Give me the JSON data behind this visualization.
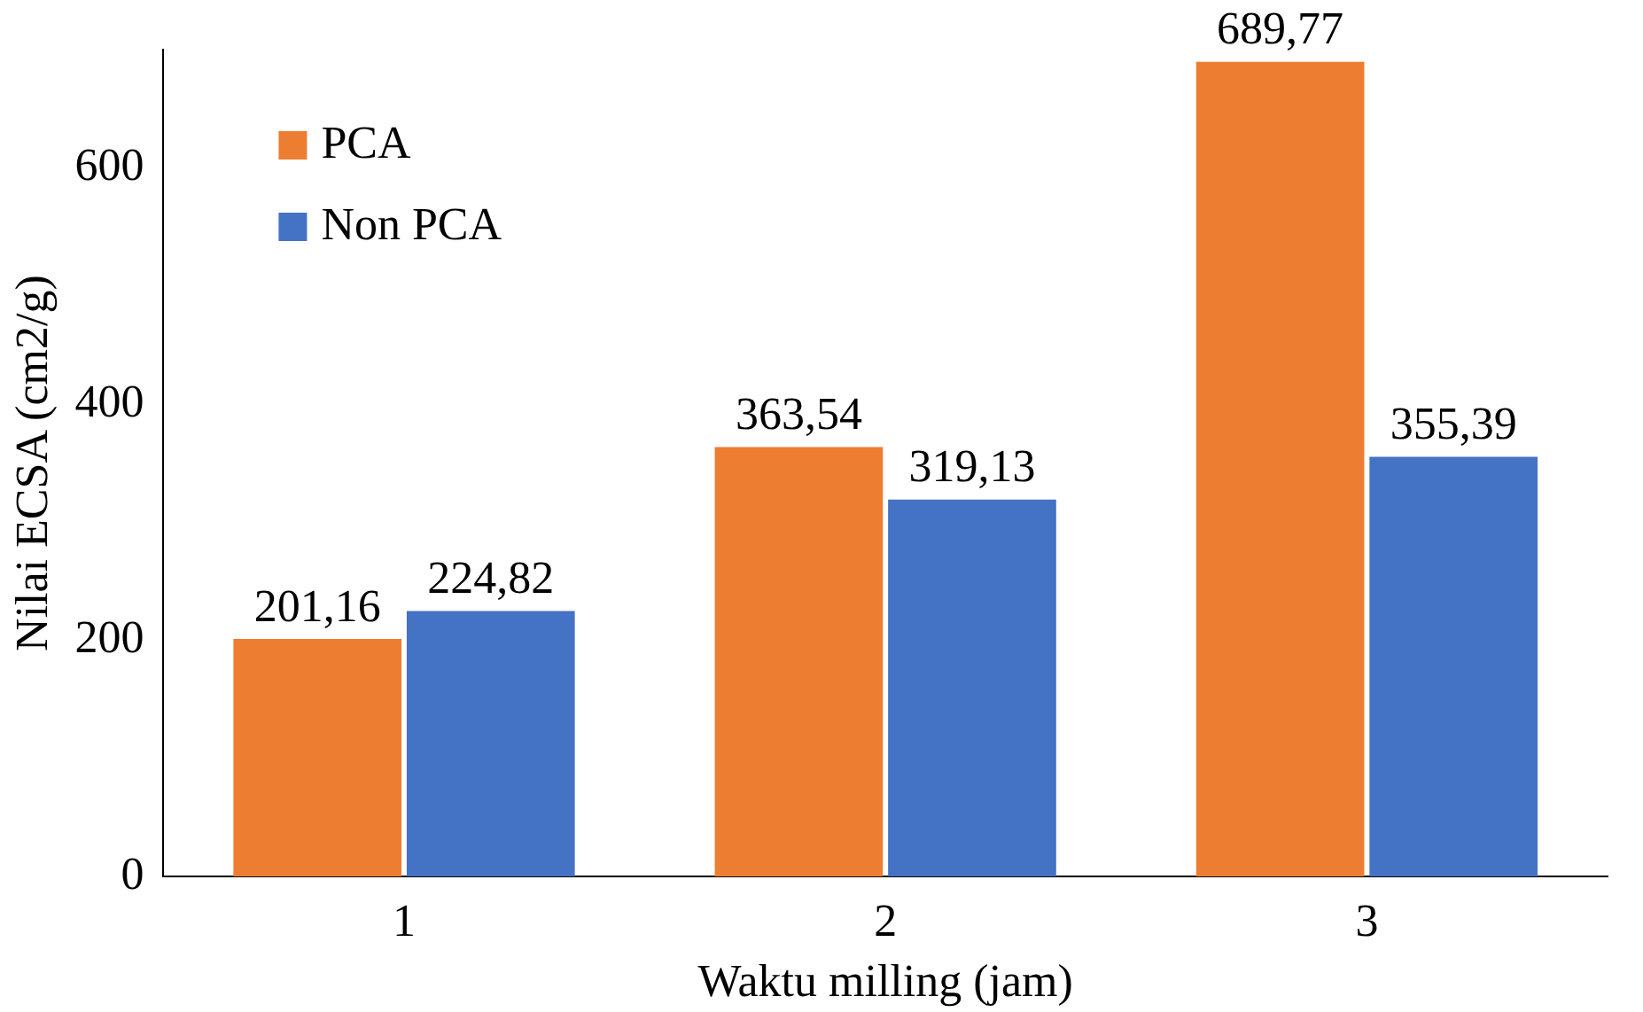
{
  "chart_data": {
    "type": "bar",
    "xlabel": "Waktu milling (jam)",
    "ylabel": "Nilai ECSA (cm2/g)",
    "categories": [
      "1",
      "2",
      "3"
    ],
    "series": [
      {
        "name": "PCA",
        "color": "#ed7d31",
        "values": [
          201.16,
          363.54,
          689.77
        ],
        "value_labels": [
          "201,16",
          "363,54",
          "689,77"
        ]
      },
      {
        "name": "Non PCA",
        "color": "#4472c4",
        "values": [
          224.82,
          319.13,
          355.39
        ],
        "value_labels": [
          "224,82",
          "319,13",
          "355,39"
        ]
      }
    ],
    "ylim": [
      0,
      700
    ],
    "yticks": [
      0,
      200,
      400,
      600
    ],
    "grid": false,
    "legend": "top left"
  }
}
